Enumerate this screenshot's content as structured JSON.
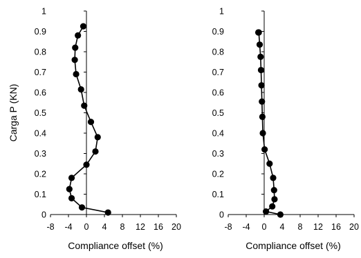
{
  "chart_data": [
    {
      "type": "line",
      "title": "",
      "xlabel": "Compliance offset (%)",
      "ylabel": "Carga P (KN)",
      "xlim": [
        -8,
        20
      ],
      "ylim": [
        0,
        1
      ],
      "xticks": [
        -8,
        -4,
        0,
        4,
        8,
        12,
        16,
        20
      ],
      "yticks": [
        0,
        0.1,
        0.2,
        0.3,
        0.4,
        0.5,
        0.6,
        0.7,
        0.8,
        0.9,
        1
      ],
      "grid": false,
      "legend": "none",
      "marker": "circle",
      "color": "#000000",
      "series": [
        {
          "x": [
            4.8,
            -1.0,
            -3.3,
            -3.8,
            -3.3,
            0.0,
            2.0,
            2.5,
            1.0,
            -0.5,
            -1.2,
            -2.3,
            -2.6,
            -2.5,
            -1.9,
            -0.7
          ],
          "y": [
            0.01,
            0.035,
            0.08,
            0.125,
            0.18,
            0.245,
            0.31,
            0.38,
            0.455,
            0.535,
            0.615,
            0.69,
            0.76,
            0.82,
            0.88,
            0.925
          ]
        }
      ]
    },
    {
      "type": "line",
      "title": "",
      "xlabel": "Compliance offset (%)",
      "ylabel": "",
      "xlim": [
        -8,
        20
      ],
      "ylim": [
        0,
        1
      ],
      "xticks": [
        -8,
        -4,
        0,
        4,
        8,
        12,
        16,
        20
      ],
      "yticks": [
        0,
        0.1,
        0.2,
        0.3,
        0.4,
        0.5,
        0.6,
        0.7,
        0.8,
        0.9,
        1
      ],
      "grid": false,
      "legend": "none",
      "marker": "circle",
      "color": "#000000",
      "series": [
        {
          "x": [
            3.6,
            0.4,
            1.8,
            2.3,
            2.2,
            2.0,
            1.2,
            0.1,
            -0.3,
            -0.4,
            -0.5,
            -0.6,
            -0.7,
            -0.8,
            -1.0,
            -1.2,
            -1.3
          ],
          "y": [
            0.0,
            0.015,
            0.04,
            0.075,
            0.12,
            0.18,
            0.25,
            0.32,
            0.4,
            0.48,
            0.555,
            0.635,
            0.71,
            0.775,
            0.835,
            0.895,
            0.895
          ]
        }
      ]
    }
  ]
}
